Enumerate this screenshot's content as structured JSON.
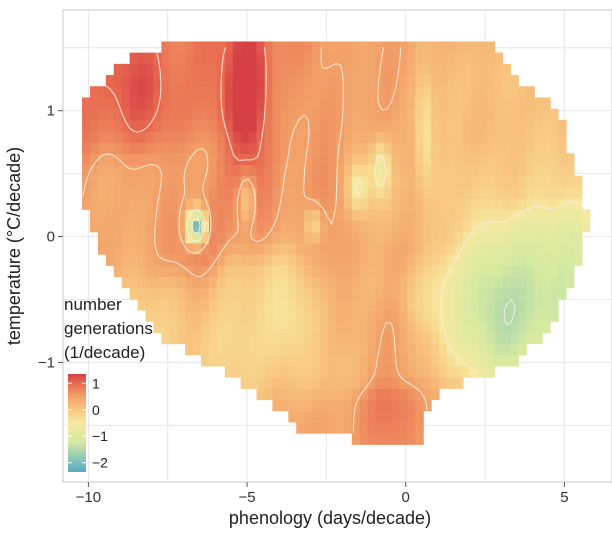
{
  "chart_data": {
    "type": "heatmap",
    "title": "",
    "xlabel": "phenology (days/decade)",
    "ylabel": "temperature (°C/decade)",
    "xlim": [
      -10.8,
      6.5
    ],
    "ylim": [
      -1.95,
      1.8
    ],
    "x_ticks": [
      -10,
      -5,
      0,
      5
    ],
    "y_ticks": [
      1,
      0,
      -1
    ],
    "grid": true,
    "legend": {
      "title_lines": [
        "number",
        "generations",
        "(1/decade)"
      ],
      "position": "bottom-left",
      "labels": [
        "1",
        "0",
        "−1",
        "−2"
      ],
      "values": [
        1,
        0,
        -1,
        -2
      ],
      "range": [
        -2.35,
        1.35
      ],
      "colorscale": [
        {
          "v": -2.35,
          "color": "#5aa7c4"
        },
        {
          "v": -2.0,
          "color": "#7bbfbd"
        },
        {
          "v": -1.2,
          "color": "#d7eaa0"
        },
        {
          "v": -0.5,
          "color": "#f6e9a0"
        },
        {
          "v": 0.0,
          "color": "#f8c780"
        },
        {
          "v": 0.5,
          "color": "#f2a068"
        },
        {
          "v": 1.0,
          "color": "#e86a50"
        },
        {
          "v": 1.35,
          "color": "#d63f45"
        }
      ]
    },
    "colors": {
      "panel_background": "#ffffff",
      "grid": "#e6e6e6",
      "contour": "#fbefdf",
      "axis_text": "#333333"
    },
    "cells": {
      "x0": -10.2,
      "x1": 5.8,
      "y0": -1.65,
      "y1": 1.55,
      "step": 0.25
    },
    "boundary": [
      [
        -10.2,
        0.7
      ],
      [
        -10.2,
        1.1
      ],
      [
        -8.8,
        1.4
      ],
      [
        -7.1,
        1.55
      ],
      [
        2.6,
        1.55
      ],
      [
        3.3,
        1.3
      ],
      [
        4.8,
        1.0
      ],
      [
        5.8,
        0.15
      ],
      [
        5.4,
        -0.3
      ],
      [
        4.6,
        -0.7
      ],
      [
        3.2,
        -1.05
      ],
      [
        1.3,
        -1.2
      ],
      [
        0.5,
        -1.45
      ],
      [
        0.5,
        -1.65
      ],
      [
        -0.3,
        -1.65
      ],
      [
        -3.2,
        -1.55
      ],
      [
        -5.5,
        -1.1
      ],
      [
        -7.7,
        -0.8
      ],
      [
        -9.5,
        -0.2
      ],
      [
        -10.2,
        0.3
      ]
    ],
    "field": {
      "base_points": [
        [
          -9.5,
          1.2,
          0.9
        ],
        [
          -6.5,
          1.3,
          0.85
        ],
        [
          -2.0,
          1.1,
          0.5
        ],
        [
          1.5,
          1.0,
          0.2
        ],
        [
          4.0,
          0.6,
          0.1
        ],
        [
          -8.0,
          0.2,
          0.4
        ],
        [
          -4.0,
          0.4,
          0.55
        ],
        [
          0.5,
          0.2,
          0.15
        ],
        [
          4.5,
          -0.2,
          -0.4
        ],
        [
          -5.0,
          -0.6,
          -0.2
        ],
        [
          -1.0,
          -0.9,
          0.1
        ],
        [
          2.5,
          -0.6,
          -0.4
        ],
        [
          -0.5,
          -1.5,
          0.5
        ]
      ],
      "features": [
        {
          "x": -4.9,
          "y": 1.0,
          "sx": 0.5,
          "sy": 0.5,
          "a": 0.7
        },
        {
          "x": -6.4,
          "y": -0.15,
          "sx": 0.6,
          "sy": 0.35,
          "a": 0.6
        },
        {
          "x": -8.5,
          "y": 1.2,
          "sx": 0.9,
          "sy": 0.25,
          "a": 0.25
        },
        {
          "x": -0.3,
          "y": -1.1,
          "sx": 0.6,
          "sy": 0.45,
          "a": 0.5
        },
        {
          "x": -2.6,
          "y": -0.3,
          "sx": 0.7,
          "sy": 0.3,
          "a": 0.35
        },
        {
          "x": 3.5,
          "y": -0.55,
          "sx": 1.5,
          "sy": 0.55,
          "a": -1.1
        },
        {
          "x": 5.3,
          "y": 0.1,
          "sx": 0.4,
          "sy": 0.4,
          "a": -0.3
        },
        {
          "x": -6.6,
          "y": 0.08,
          "sx": 0.22,
          "sy": 0.1,
          "a": -2.8
        },
        {
          "x": -1.5,
          "y": 0.4,
          "sx": 0.25,
          "sy": 0.15,
          "a": -0.9
        },
        {
          "x": -0.8,
          "y": 0.55,
          "sx": 0.2,
          "sy": 0.15,
          "a": -1.0
        },
        {
          "x": -5.0,
          "y": 0.3,
          "sx": 0.2,
          "sy": 0.15,
          "a": -0.8
        },
        {
          "x": -2.9,
          "y": 0.1,
          "sx": 0.2,
          "sy": 0.1,
          "a": -0.8
        },
        {
          "x": -3.8,
          "y": -0.6,
          "sx": 0.5,
          "sy": 0.4,
          "a": -0.3
        },
        {
          "x": 0.6,
          "y": 0.8,
          "sx": 0.2,
          "sy": 0.3,
          "a": -0.7
        },
        {
          "x": -0.4,
          "y": -0.3,
          "sx": 0.6,
          "sy": 0.3,
          "a": 0.35
        },
        {
          "x": -5.0,
          "y": 1.3,
          "sx": 0.3,
          "sy": 0.3,
          "a": 0.35
        },
        {
          "x": 2.6,
          "y": 1.3,
          "sx": 0.6,
          "sy": 0.3,
          "a": -0.2
        }
      ]
    }
  }
}
